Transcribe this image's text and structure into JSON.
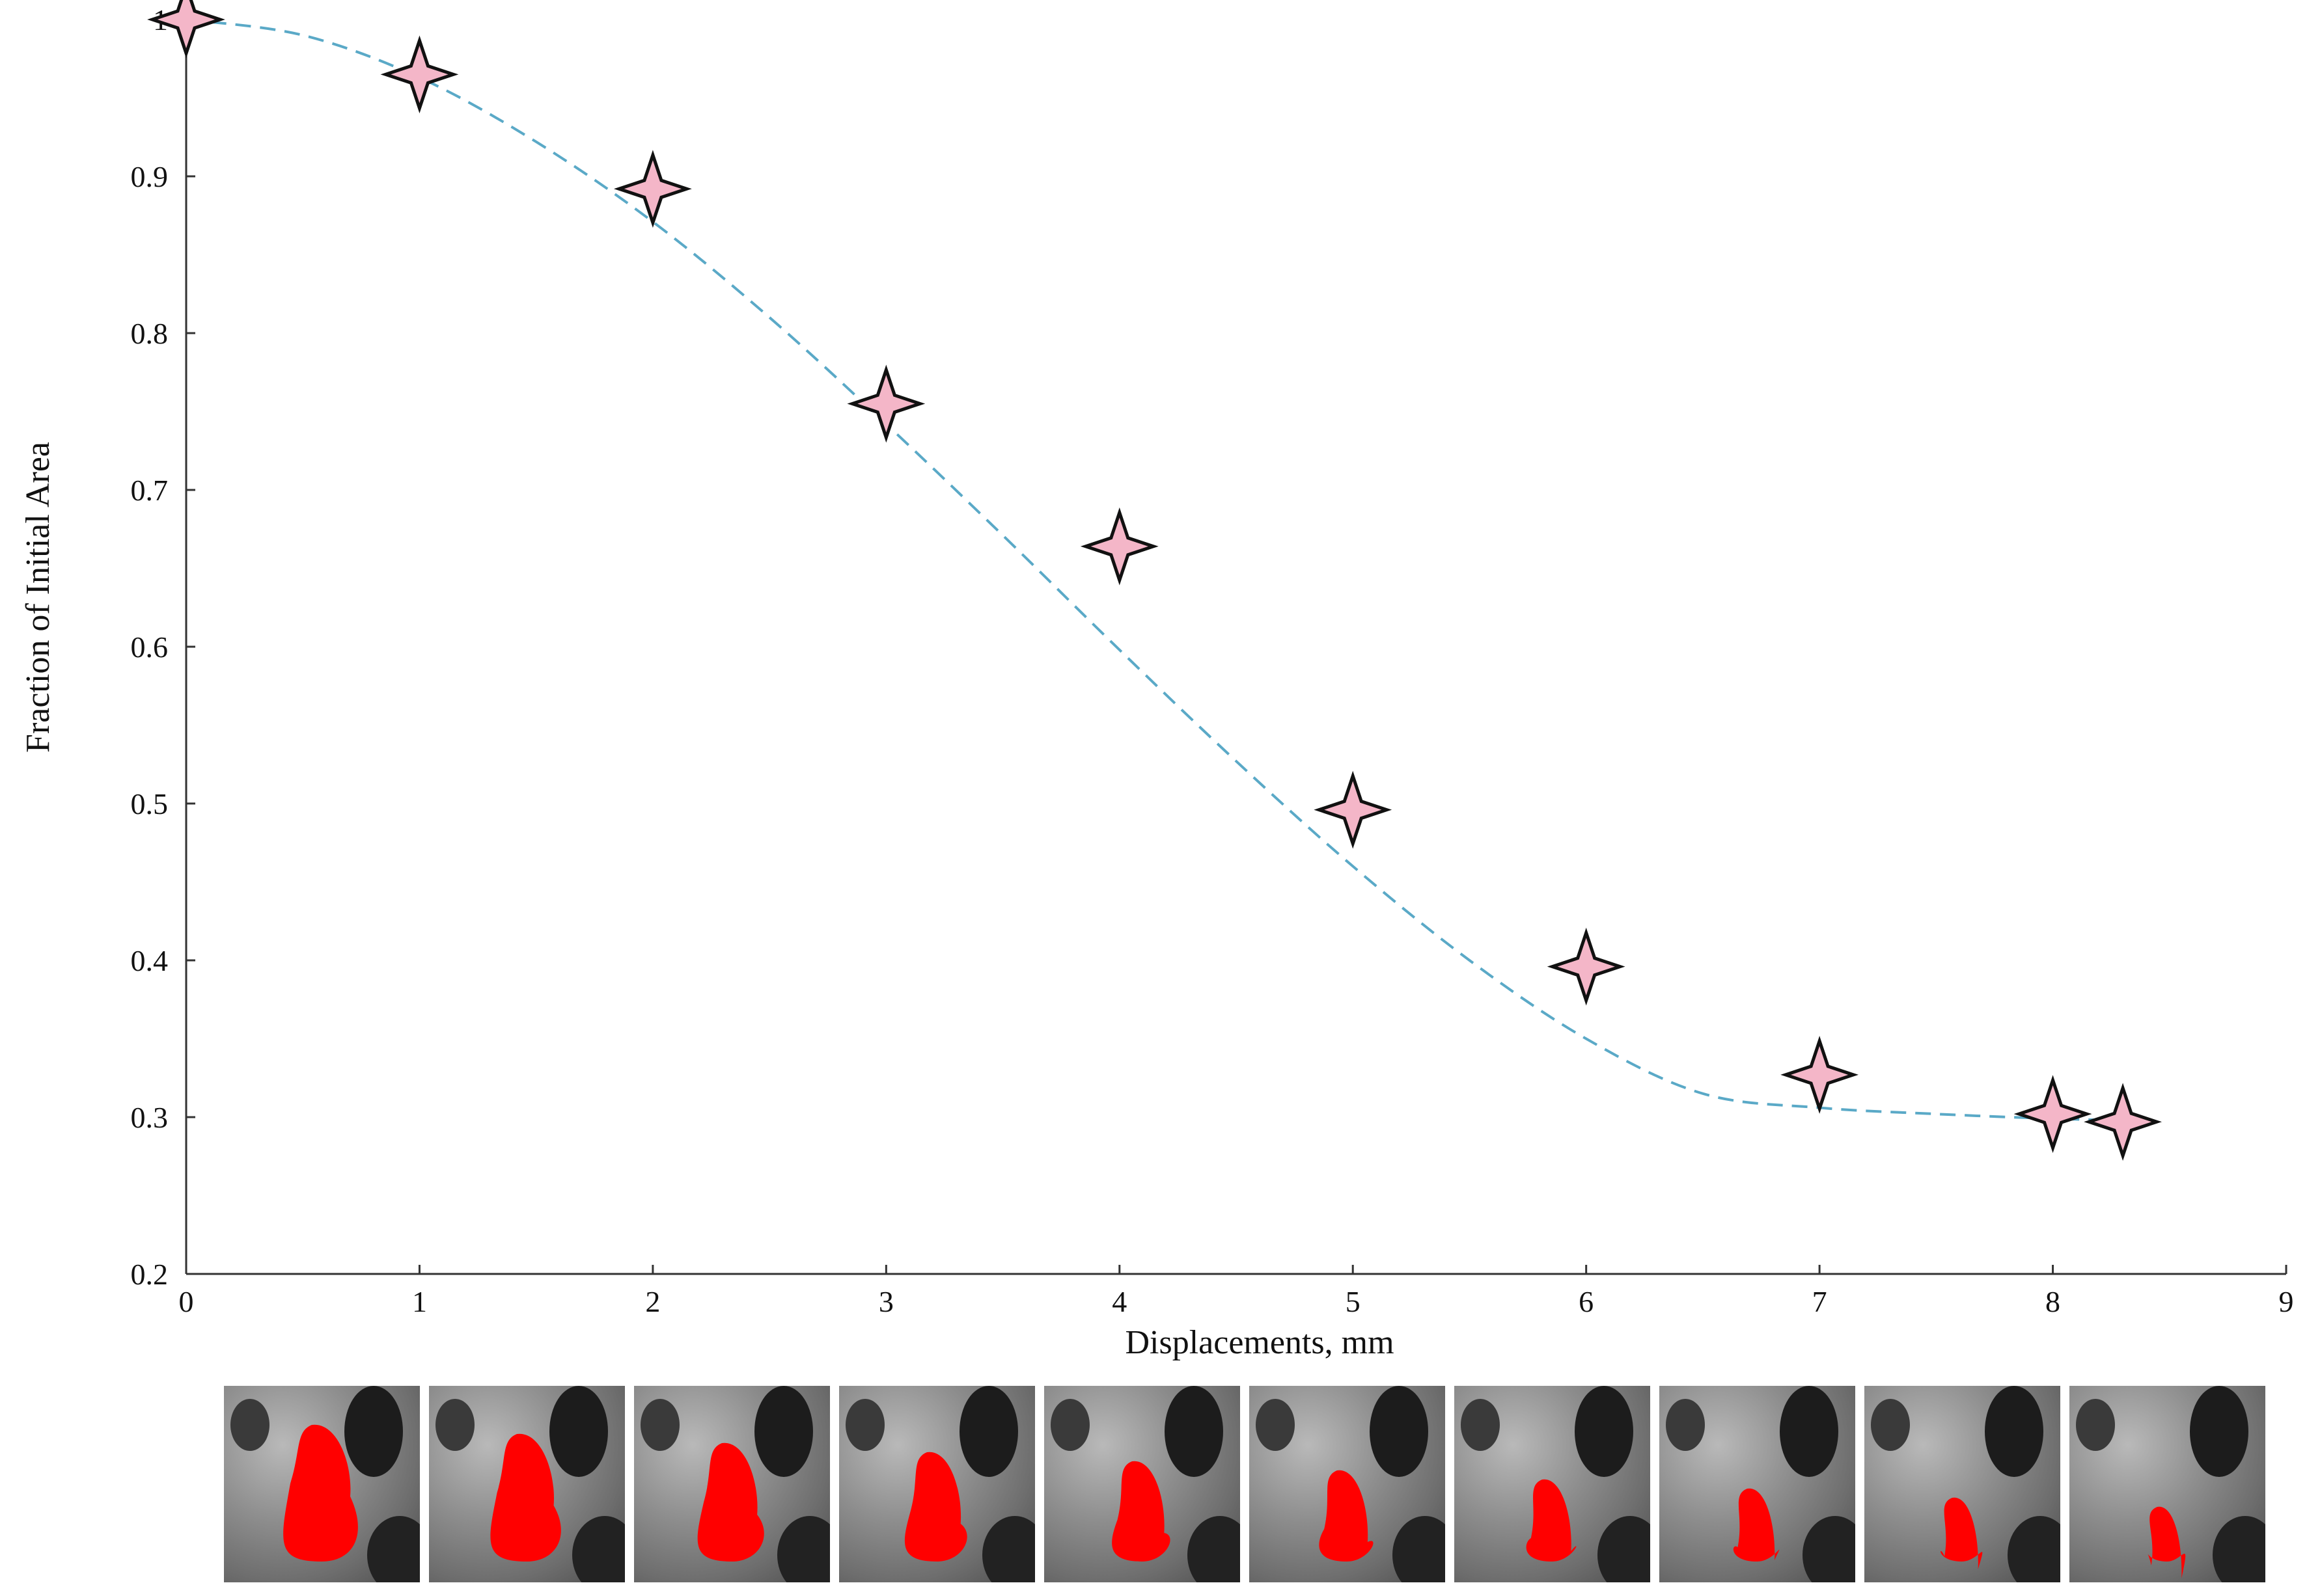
{
  "chart_data": {
    "type": "scatter",
    "xlabel": "Displacements, mm",
    "ylabel": "Fraction of Initial Area",
    "xlim": [
      0,
      9
    ],
    "ylim": [
      0.2,
      1.0
    ],
    "x_ticks": [
      "0",
      "1",
      "2",
      "3",
      "4",
      "5",
      "6",
      "7",
      "8",
      "9"
    ],
    "y_ticks": [
      "0.2",
      "0.3",
      "0.4",
      "0.5",
      "0.6",
      "0.7",
      "0.8",
      "0.9",
      "1"
    ],
    "grid": false,
    "series": [
      {
        "marker": "four-point-star",
        "color": "#f4b6c8",
        "x": [
          0,
          1,
          2,
          3,
          4,
          5,
          6,
          7,
          8,
          8.3
        ],
        "y": [
          1.0,
          0.965,
          0.892,
          0.755,
          0.664,
          0.496,
          0.396,
          0.327,
          0.302,
          0.297
        ]
      },
      {
        "line_style": "dashed",
        "color": "#5aa9c7",
        "x": [
          0,
          0.5,
          1,
          1.5,
          2,
          2.5,
          3,
          3.5,
          4,
          4.5,
          5,
          5.5,
          6,
          6.5,
          7,
          7.5,
          8,
          8.3
        ],
        "y": [
          1.0,
          0.99,
          0.963,
          0.922,
          0.871,
          0.81,
          0.742,
          0.671,
          0.598,
          0.527,
          0.46,
          0.4,
          0.35,
          0.315,
          0.306,
          0.302,
          0.299,
          0.298
        ]
      }
    ],
    "thumbnails": {
      "count": 10,
      "highlight_color": "#ff0000"
    }
  }
}
